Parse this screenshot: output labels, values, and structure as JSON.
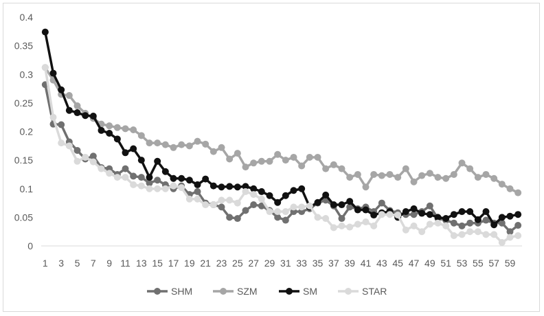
{
  "chart_data": {
    "type": "line",
    "title": "",
    "xlabel": "",
    "ylabel": "",
    "ylim": [
      0,
      0.4
    ],
    "y_ticks": [
      "0",
      "0.05",
      "0.1",
      "0.15",
      "0.2",
      "0.25",
      "0.3",
      "0.35",
      "0.4"
    ],
    "x": [
      1,
      2,
      3,
      4,
      5,
      6,
      7,
      8,
      9,
      10,
      11,
      12,
      13,
      14,
      15,
      16,
      17,
      18,
      19,
      20,
      21,
      22,
      23,
      24,
      25,
      26,
      27,
      28,
      29,
      30,
      31,
      32,
      33,
      34,
      35,
      36,
      37,
      38,
      39,
      40,
      41,
      42,
      43,
      44,
      45,
      46,
      47,
      48,
      49,
      50,
      51,
      52,
      53,
      54,
      55,
      56,
      57,
      58,
      59,
      60
    ],
    "x_tick_labels": [
      "1",
      "3",
      "5",
      "7",
      "9",
      "11",
      "13",
      "15",
      "17",
      "19",
      "21",
      "23",
      "25",
      "27",
      "29",
      "31",
      "33",
      "35",
      "37",
      "39",
      "41",
      "43",
      "45",
      "47",
      "49",
      "51",
      "53",
      "55",
      "57",
      "59"
    ],
    "grid": false,
    "legend_position": "bottom",
    "series": [
      {
        "name": "SHM",
        "color": "#707070",
        "values": [
          0.282,
          0.213,
          0.212,
          0.182,
          0.167,
          0.152,
          0.157,
          0.137,
          0.135,
          0.125,
          0.135,
          0.122,
          0.12,
          0.11,
          0.115,
          0.107,
          0.1,
          0.105,
          0.09,
          0.095,
          0.075,
          0.072,
          0.068,
          0.05,
          0.048,
          0.062,
          0.072,
          0.07,
          0.062,
          0.05,
          0.045,
          0.06,
          0.06,
          0.065,
          0.075,
          0.08,
          0.07,
          0.048,
          0.068,
          0.065,
          0.068,
          0.06,
          0.075,
          0.062,
          0.058,
          0.055,
          0.055,
          0.06,
          0.07,
          0.048,
          0.045,
          0.04,
          0.035,
          0.04,
          0.04,
          0.045,
          0.04,
          0.04,
          0.025,
          0.036
        ]
      },
      {
        "name": "SZM",
        "color": "#a6a6a6",
        "values": [
          0.312,
          0.29,
          0.265,
          0.263,
          0.245,
          0.232,
          0.223,
          0.213,
          0.21,
          0.207,
          0.205,
          0.203,
          0.193,
          0.18,
          0.18,
          0.177,
          0.172,
          0.177,
          0.175,
          0.183,
          0.178,
          0.165,
          0.172,
          0.152,
          0.162,
          0.138,
          0.145,
          0.148,
          0.148,
          0.16,
          0.15,
          0.155,
          0.14,
          0.155,
          0.155,
          0.135,
          0.142,
          0.135,
          0.12,
          0.125,
          0.103,
          0.125,
          0.123,
          0.125,
          0.12,
          0.135,
          0.112,
          0.123,
          0.127,
          0.12,
          0.118,
          0.125,
          0.145,
          0.135,
          0.12,
          0.125,
          0.118,
          0.108,
          0.1,
          0.093
        ]
      },
      {
        "name": "SM",
        "color": "#111111",
        "values": [
          0.374,
          0.302,
          0.273,
          0.237,
          0.233,
          0.228,
          0.227,
          0.202,
          0.197,
          0.187,
          0.163,
          0.17,
          0.15,
          0.12,
          0.148,
          0.13,
          0.118,
          0.118,
          0.115,
          0.107,
          0.117,
          0.105,
          0.103,
          0.104,
          0.103,
          0.104,
          0.1,
          0.095,
          0.088,
          0.076,
          0.088,
          0.097,
          0.1,
          0.068,
          0.076,
          0.089,
          0.072,
          0.072,
          0.078,
          0.063,
          0.063,
          0.054,
          0.058,
          0.06,
          0.05,
          0.06,
          0.065,
          0.057,
          0.055,
          0.05,
          0.048,
          0.055,
          0.06,
          0.06,
          0.046,
          0.06,
          0.037,
          0.05,
          0.052,
          0.055
        ]
      },
      {
        "name": "STAR",
        "color": "#dadada",
        "values": [
          0.312,
          0.225,
          0.18,
          0.175,
          0.148,
          0.155,
          0.147,
          0.135,
          0.127,
          0.12,
          0.12,
          0.107,
          0.105,
          0.1,
          0.1,
          0.1,
          0.105,
          0.102,
          0.082,
          0.082,
          0.072,
          0.072,
          0.08,
          0.08,
          0.075,
          0.095,
          0.09,
          0.082,
          0.06,
          0.06,
          0.06,
          0.068,
          0.068,
          0.07,
          0.05,
          0.048,
          0.032,
          0.035,
          0.033,
          0.038,
          0.042,
          0.035,
          0.055,
          0.055,
          0.054,
          0.028,
          0.035,
          0.025,
          0.038,
          0.04,
          0.035,
          0.018,
          0.02,
          0.025,
          0.025,
          0.02,
          0.02,
          0.006,
          0.015,
          0.018
        ]
      }
    ]
  }
}
